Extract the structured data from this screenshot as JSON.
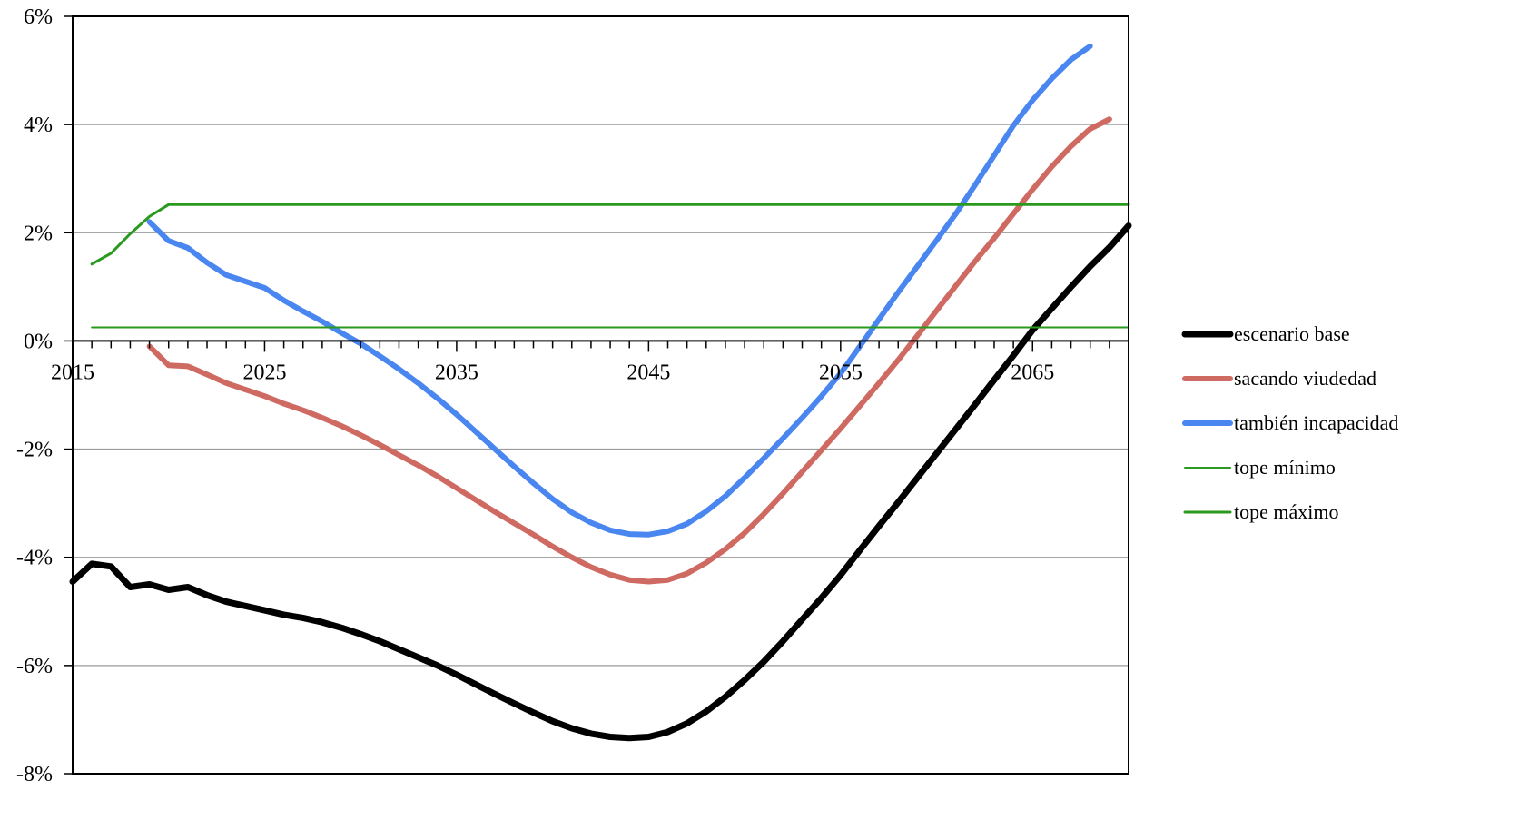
{
  "chart_data": {
    "type": "line",
    "title": "",
    "xlabel": "",
    "ylabel": "",
    "xlim": [
      2015,
      2070
    ],
    "ylim": [
      -8,
      6
    ],
    "x_ticks": [
      2015,
      2025,
      2035,
      2045,
      2055,
      2065
    ],
    "x_tick_labels": [
      "2015",
      "2025",
      "2035",
      "2045",
      "2055",
      "2065"
    ],
    "y_ticks": [
      6,
      4,
      2,
      0,
      -2,
      -4,
      -6,
      -8
    ],
    "y_tick_labels": [
      "6%",
      "4%",
      "2%",
      "0%",
      "-2%",
      "-4%",
      "-6%",
      "-8%"
    ],
    "grid": "horizontal",
    "legend_position": "right",
    "series": [
      {
        "name": "escenario base",
        "color": "#000000",
        "width": 7,
        "points": [
          [
            2015,
            -4.45
          ],
          [
            2016,
            -4.12
          ],
          [
            2017,
            -4.17
          ],
          [
            2018,
            -4.55
          ],
          [
            2019,
            -4.5
          ],
          [
            2020,
            -4.6
          ],
          [
            2021,
            -4.55
          ],
          [
            2022,
            -4.7
          ],
          [
            2023,
            -4.82
          ],
          [
            2024,
            -4.9
          ],
          [
            2025,
            -4.98
          ],
          [
            2026,
            -5.06
          ],
          [
            2027,
            -5.12
          ],
          [
            2028,
            -5.2
          ],
          [
            2029,
            -5.3
          ],
          [
            2030,
            -5.42
          ],
          [
            2031,
            -5.55
          ],
          [
            2032,
            -5.7
          ],
          [
            2033,
            -5.85
          ],
          [
            2034,
            -6.0
          ],
          [
            2035,
            -6.17
          ],
          [
            2036,
            -6.35
          ],
          [
            2037,
            -6.53
          ],
          [
            2038,
            -6.7
          ],
          [
            2039,
            -6.87
          ],
          [
            2040,
            -7.03
          ],
          [
            2041,
            -7.16
          ],
          [
            2042,
            -7.26
          ],
          [
            2043,
            -7.32
          ],
          [
            2044,
            -7.34
          ],
          [
            2045,
            -7.32
          ],
          [
            2046,
            -7.23
          ],
          [
            2047,
            -7.07
          ],
          [
            2048,
            -6.85
          ],
          [
            2049,
            -6.58
          ],
          [
            2050,
            -6.27
          ],
          [
            2051,
            -5.93
          ],
          [
            2052,
            -5.55
          ],
          [
            2053,
            -5.15
          ],
          [
            2054,
            -4.75
          ],
          [
            2055,
            -4.33
          ],
          [
            2056,
            -3.87
          ],
          [
            2057,
            -3.42
          ],
          [
            2058,
            -2.98
          ],
          [
            2059,
            -2.53
          ],
          [
            2060,
            -2.08
          ],
          [
            2061,
            -1.63
          ],
          [
            2062,
            -1.18
          ],
          [
            2063,
            -0.72
          ],
          [
            2064,
            -0.27
          ],
          [
            2065,
            0.2
          ],
          [
            2066,
            0.6
          ],
          [
            2067,
            1.0
          ],
          [
            2068,
            1.38
          ],
          [
            2069,
            1.73
          ],
          [
            2070,
            2.13
          ]
        ]
      },
      {
        "name": "sacando viudedad",
        "color": "#cf6a63",
        "width": 6,
        "points": [
          [
            2019,
            -0.1
          ],
          [
            2020,
            -0.45
          ],
          [
            2021,
            -0.47
          ],
          [
            2022,
            -0.62
          ],
          [
            2023,
            -0.78
          ],
          [
            2024,
            -0.9
          ],
          [
            2025,
            -1.02
          ],
          [
            2026,
            -1.16
          ],
          [
            2027,
            -1.28
          ],
          [
            2028,
            -1.42
          ],
          [
            2029,
            -1.57
          ],
          [
            2030,
            -1.74
          ],
          [
            2031,
            -1.92
          ],
          [
            2032,
            -2.11
          ],
          [
            2033,
            -2.3
          ],
          [
            2034,
            -2.5
          ],
          [
            2035,
            -2.72
          ],
          [
            2036,
            -2.94
          ],
          [
            2037,
            -3.16
          ],
          [
            2038,
            -3.37
          ],
          [
            2039,
            -3.58
          ],
          [
            2040,
            -3.8
          ],
          [
            2041,
            -4.0
          ],
          [
            2042,
            -4.18
          ],
          [
            2043,
            -4.32
          ],
          [
            2044,
            -4.42
          ],
          [
            2045,
            -4.45
          ],
          [
            2046,
            -4.42
          ],
          [
            2047,
            -4.3
          ],
          [
            2048,
            -4.1
          ],
          [
            2049,
            -3.85
          ],
          [
            2050,
            -3.55
          ],
          [
            2051,
            -3.2
          ],
          [
            2052,
            -2.82
          ],
          [
            2053,
            -2.42
          ],
          [
            2054,
            -2.02
          ],
          [
            2055,
            -1.62
          ],
          [
            2056,
            -1.2
          ],
          [
            2057,
            -0.78
          ],
          [
            2058,
            -0.35
          ],
          [
            2059,
            0.1
          ],
          [
            2060,
            0.56
          ],
          [
            2061,
            1.02
          ],
          [
            2062,
            1.47
          ],
          [
            2063,
            1.9
          ],
          [
            2064,
            2.35
          ],
          [
            2065,
            2.8
          ],
          [
            2066,
            3.22
          ],
          [
            2067,
            3.6
          ],
          [
            2068,
            3.92
          ],
          [
            2069,
            4.1
          ]
        ]
      },
      {
        "name": "también incapacidad",
        "color": "#4a86f0",
        "width": 6,
        "points": [
          [
            2019,
            2.2
          ],
          [
            2020,
            1.85
          ],
          [
            2021,
            1.72
          ],
          [
            2022,
            1.45
          ],
          [
            2023,
            1.22
          ],
          [
            2024,
            1.1
          ],
          [
            2025,
            0.98
          ],
          [
            2026,
            0.75
          ],
          [
            2027,
            0.55
          ],
          [
            2028,
            0.36
          ],
          [
            2029,
            0.15
          ],
          [
            2030,
            -0.05
          ],
          [
            2031,
            -0.28
          ],
          [
            2032,
            -0.52
          ],
          [
            2033,
            -0.78
          ],
          [
            2034,
            -1.06
          ],
          [
            2035,
            -1.36
          ],
          [
            2036,
            -1.68
          ],
          [
            2037,
            -2.0
          ],
          [
            2038,
            -2.32
          ],
          [
            2039,
            -2.63
          ],
          [
            2040,
            -2.92
          ],
          [
            2041,
            -3.17
          ],
          [
            2042,
            -3.36
          ],
          [
            2043,
            -3.5
          ],
          [
            2044,
            -3.57
          ],
          [
            2045,
            -3.58
          ],
          [
            2046,
            -3.52
          ],
          [
            2047,
            -3.38
          ],
          [
            2048,
            -3.15
          ],
          [
            2049,
            -2.87
          ],
          [
            2050,
            -2.53
          ],
          [
            2051,
            -2.17
          ],
          [
            2052,
            -1.8
          ],
          [
            2053,
            -1.42
          ],
          [
            2054,
            -1.02
          ],
          [
            2055,
            -0.6
          ],
          [
            2056,
            -0.1
          ],
          [
            2057,
            0.4
          ],
          [
            2058,
            0.9
          ],
          [
            2059,
            1.38
          ],
          [
            2060,
            1.86
          ],
          [
            2061,
            2.35
          ],
          [
            2062,
            2.88
          ],
          [
            2063,
            3.43
          ],
          [
            2064,
            3.98
          ],
          [
            2065,
            4.45
          ],
          [
            2066,
            4.85
          ],
          [
            2067,
            5.2
          ],
          [
            2068,
            5.45
          ]
        ]
      },
      {
        "name": "tope mínimo",
        "color": "#2a9a1e",
        "width": 2,
        "points": [
          [
            2016,
            0.25
          ],
          [
            2070,
            0.25
          ]
        ]
      },
      {
        "name": "tope máximo",
        "color": "#2a9a1e",
        "width": 3,
        "points": [
          [
            2016,
            1.42
          ],
          [
            2017,
            1.62
          ],
          [
            2018,
            1.98
          ],
          [
            2019,
            2.3
          ],
          [
            2020,
            2.52
          ],
          [
            2070,
            2.52
          ]
        ]
      }
    ]
  }
}
